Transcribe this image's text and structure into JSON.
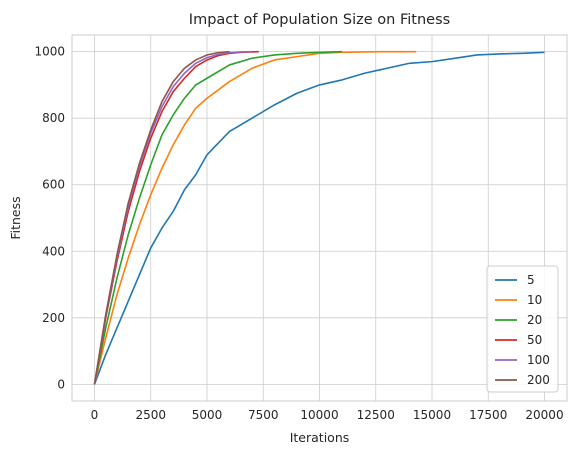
{
  "chart_data": {
    "type": "line",
    "title": "Impact of Population Size on Fitness",
    "xlabel": "Iterations",
    "ylabel": "Fitness",
    "xlim": [
      -1000,
      21000
    ],
    "ylim": [
      -50,
      1050
    ],
    "xticks": [
      0,
      2500,
      5000,
      7500,
      10000,
      12500,
      15000,
      17500,
      20000
    ],
    "yticks": [
      0,
      200,
      400,
      600,
      800,
      1000
    ],
    "grid": true,
    "legend_position": "lower-right",
    "series": [
      {
        "name": "5",
        "color": "#1f77b4",
        "x": [
          0,
          500,
          1000,
          1500,
          2000,
          2500,
          3000,
          3500,
          4000,
          4500,
          5000,
          6000,
          7000,
          8000,
          9000,
          10000,
          11000,
          12000,
          13000,
          14000,
          15000,
          16000,
          17000,
          18000,
          19000,
          20000
        ],
        "y": [
          0,
          90,
          170,
          250,
          330,
          410,
          470,
          520,
          585,
          630,
          690,
          760,
          800,
          840,
          875,
          900,
          915,
          935,
          950,
          965,
          970,
          980,
          990,
          993,
          995,
          998
        ]
      },
      {
        "name": "10",
        "color": "#ff7f0e",
        "x": [
          0,
          500,
          1000,
          1500,
          2000,
          2500,
          3000,
          3500,
          4000,
          4500,
          5000,
          6000,
          7000,
          8000,
          9000,
          10000,
          11000,
          12000,
          13000,
          14300
        ],
        "y": [
          0,
          140,
          270,
          380,
          480,
          570,
          650,
          720,
          780,
          830,
          860,
          910,
          950,
          975,
          985,
          995,
          998,
          999,
          1000,
          1000
        ]
      },
      {
        "name": "20",
        "color": "#2ca02c",
        "x": [
          0,
          500,
          1000,
          1500,
          2000,
          2500,
          3000,
          3500,
          4000,
          4500,
          5000,
          6000,
          7000,
          8000,
          9000,
          10000,
          11000
        ],
        "y": [
          0,
          170,
          320,
          450,
          560,
          660,
          750,
          810,
          860,
          900,
          920,
          960,
          980,
          990,
          995,
          998,
          1000
        ]
      },
      {
        "name": "50",
        "color": "#d62728",
        "x": [
          0,
          500,
          1000,
          1500,
          2000,
          2500,
          3000,
          3500,
          4000,
          4500,
          5000,
          5500,
          6000,
          6500,
          7300
        ],
        "y": [
          0,
          200,
          370,
          520,
          640,
          740,
          820,
          880,
          920,
          955,
          975,
          988,
          995,
          998,
          1000
        ]
      },
      {
        "name": "100",
        "color": "#9467bd",
        "x": [
          0,
          500,
          1000,
          1500,
          2000,
          2500,
          3000,
          3500,
          4000,
          4500,
          5000,
          5500,
          6000,
          6500,
          7000
        ],
        "y": [
          0,
          205,
          380,
          535,
          655,
          755,
          835,
          895,
          935,
          965,
          982,
          992,
          997,
          999,
          1000
        ]
      },
      {
        "name": "200",
        "color": "#8c564b",
        "x": [
          0,
          500,
          1000,
          1500,
          2000,
          2500,
          3000,
          3500,
          4000,
          4500,
          5000,
          5500,
          6000
        ],
        "y": [
          0,
          210,
          390,
          545,
          665,
          765,
          850,
          910,
          950,
          975,
          990,
          997,
          1000
        ]
      }
    ]
  }
}
